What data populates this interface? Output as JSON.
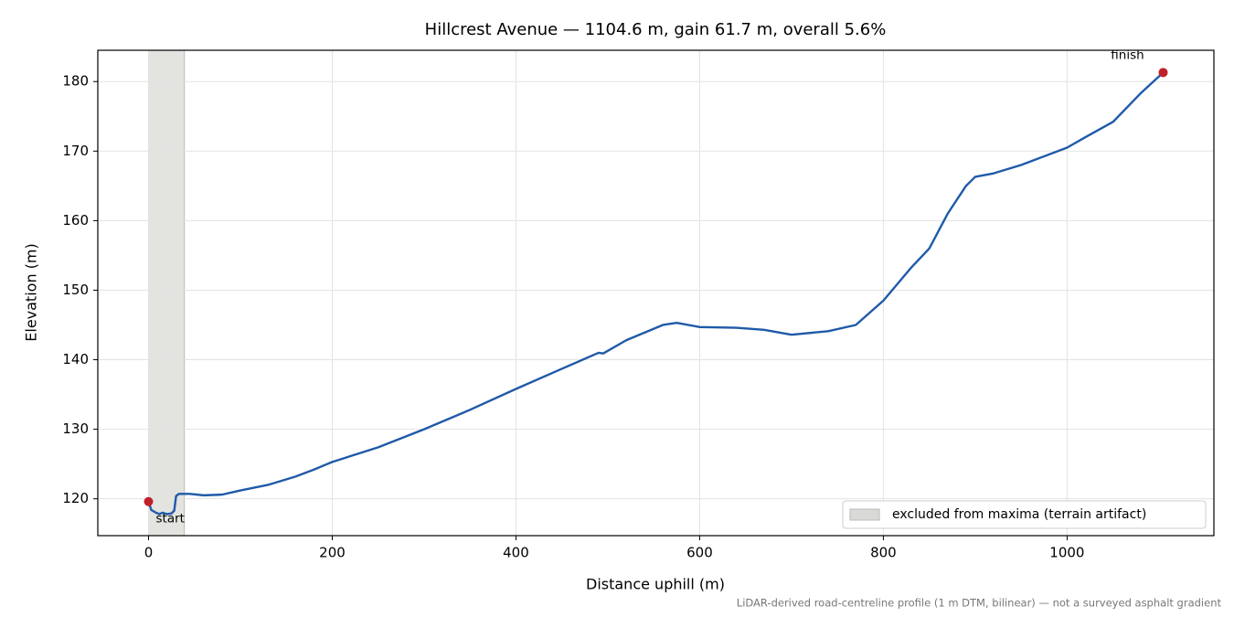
{
  "chart_data": {
    "type": "line",
    "title": "Hillcrest Avenue — 1104.6 m, gain 61.7 m, overall 5.6%",
    "x_label": "Distance uphill (m)",
    "y_label": "Elevation (m)",
    "footnote": "LiDAR-derived road-centreline profile (1 m DTM, bilinear) — not a surveyed asphalt gradient",
    "color": "#1f5aa8",
    "x": [
      0,
      3,
      8,
      12,
      15,
      20,
      25,
      28,
      30,
      33,
      45,
      60,
      80,
      100,
      130,
      160,
      180,
      200,
      250,
      300,
      350,
      400,
      450,
      490,
      495,
      520,
      560,
      575,
      600,
      640,
      670,
      700,
      740,
      770,
      800,
      830,
      850,
      870,
      890,
      900,
      920,
      950,
      970,
      1000,
      1020,
      1050,
      1080,
      1104.6
    ],
    "values": [
      119.6,
      118.4,
      118.0,
      117.8,
      118.0,
      117.8,
      117.9,
      118.3,
      120.4,
      120.7,
      120.7,
      120.5,
      120.6,
      121.2,
      122.0,
      123.2,
      124.2,
      125.3,
      127.4,
      130.0,
      132.8,
      135.8,
      138.7,
      141.0,
      140.9,
      142.8,
      145.0,
      145.3,
      144.7,
      144.6,
      144.3,
      143.6,
      144.1,
      145.0,
      148.5,
      153.2,
      156.0,
      161.0,
      165.0,
      166.3,
      166.8,
      168.0,
      169.0,
      170.5,
      172.0,
      174.2,
      178.3,
      181.3
    ],
    "shaded_region": {
      "label": "excluded from maxima (terrain artifact)",
      "range": [
        0,
        39
      ],
      "color": "#d9d9d6"
    },
    "annotations": [
      {
        "text": "start",
        "x": 0,
        "y": 119.6,
        "color": "#c0202a"
      },
      {
        "text": "finish",
        "x": 1104.6,
        "y": 181.3,
        "color": "#c0202a"
      }
    ],
    "xlim": [
      -55.23,
      1159.83
    ],
    "ylim": [
      114.7,
      184.5
    ],
    "xticks": [
      0,
      200,
      400,
      600,
      800,
      1000
    ],
    "yticks": [
      120,
      130,
      140,
      150,
      160,
      170,
      180
    ],
    "grid": true,
    "legend_position": "lower right"
  }
}
